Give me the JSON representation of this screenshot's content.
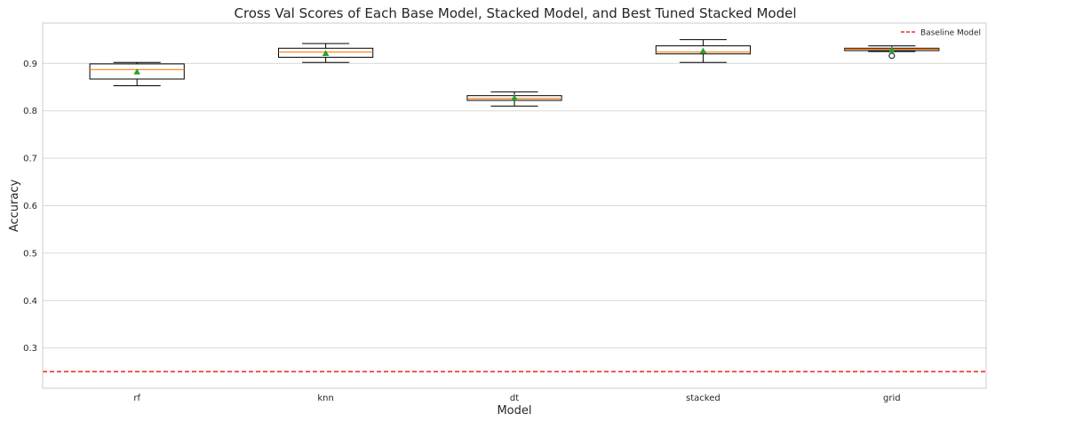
{
  "chart_data": {
    "type": "box",
    "title": "Cross Val Scores of Each Base Model, Stacked Model,  and Best Tuned Stacked Model",
    "xlabel": "Model",
    "ylabel": "Accuracy",
    "ylim": [
      0.215,
      0.985
    ],
    "yticks": [
      0.3,
      0.4,
      0.5,
      0.6,
      0.7,
      0.8,
      0.9
    ],
    "yticklabels": [
      "0.3",
      "0.4",
      "0.5",
      "0.6",
      "0.7",
      "0.8",
      "0.9"
    ],
    "grid": true,
    "legend_position": "top-right",
    "categories": [
      "rf",
      "knn",
      "dt",
      "stacked",
      "grid"
    ],
    "boxes": [
      {
        "whisker_low": 0.853,
        "q1": 0.867,
        "median": 0.887,
        "q3": 0.899,
        "whisker_high": 0.902,
        "mean": 0.882,
        "outliers": []
      },
      {
        "whisker_low": 0.902,
        "q1": 0.913,
        "median": 0.924,
        "q3": 0.932,
        "whisker_high": 0.942,
        "mean": 0.921,
        "outliers": []
      },
      {
        "whisker_low": 0.81,
        "q1": 0.822,
        "median": 0.826,
        "q3": 0.832,
        "whisker_high": 0.84,
        "mean": 0.827,
        "outliers": []
      },
      {
        "whisker_low": 0.902,
        "q1": 0.92,
        "median": 0.924,
        "q3": 0.937,
        "whisker_high": 0.95,
        "mean": 0.926,
        "outliers": []
      },
      {
        "whisker_low": 0.925,
        "q1": 0.927,
        "median": 0.93,
        "q3": 0.932,
        "whisker_high": 0.937,
        "mean": 0.928,
        "outliers": [
          0.916
        ]
      }
    ],
    "baseline": {
      "name": "Baseline Model",
      "value": 0.25,
      "color": "#e8302b",
      "style": "dashed"
    },
    "colors": {
      "box": "#000000",
      "median": "#ff7f0e",
      "mean": "#2ca02c",
      "grid": "#d9d9d9",
      "spine": "#cccccc"
    }
  }
}
